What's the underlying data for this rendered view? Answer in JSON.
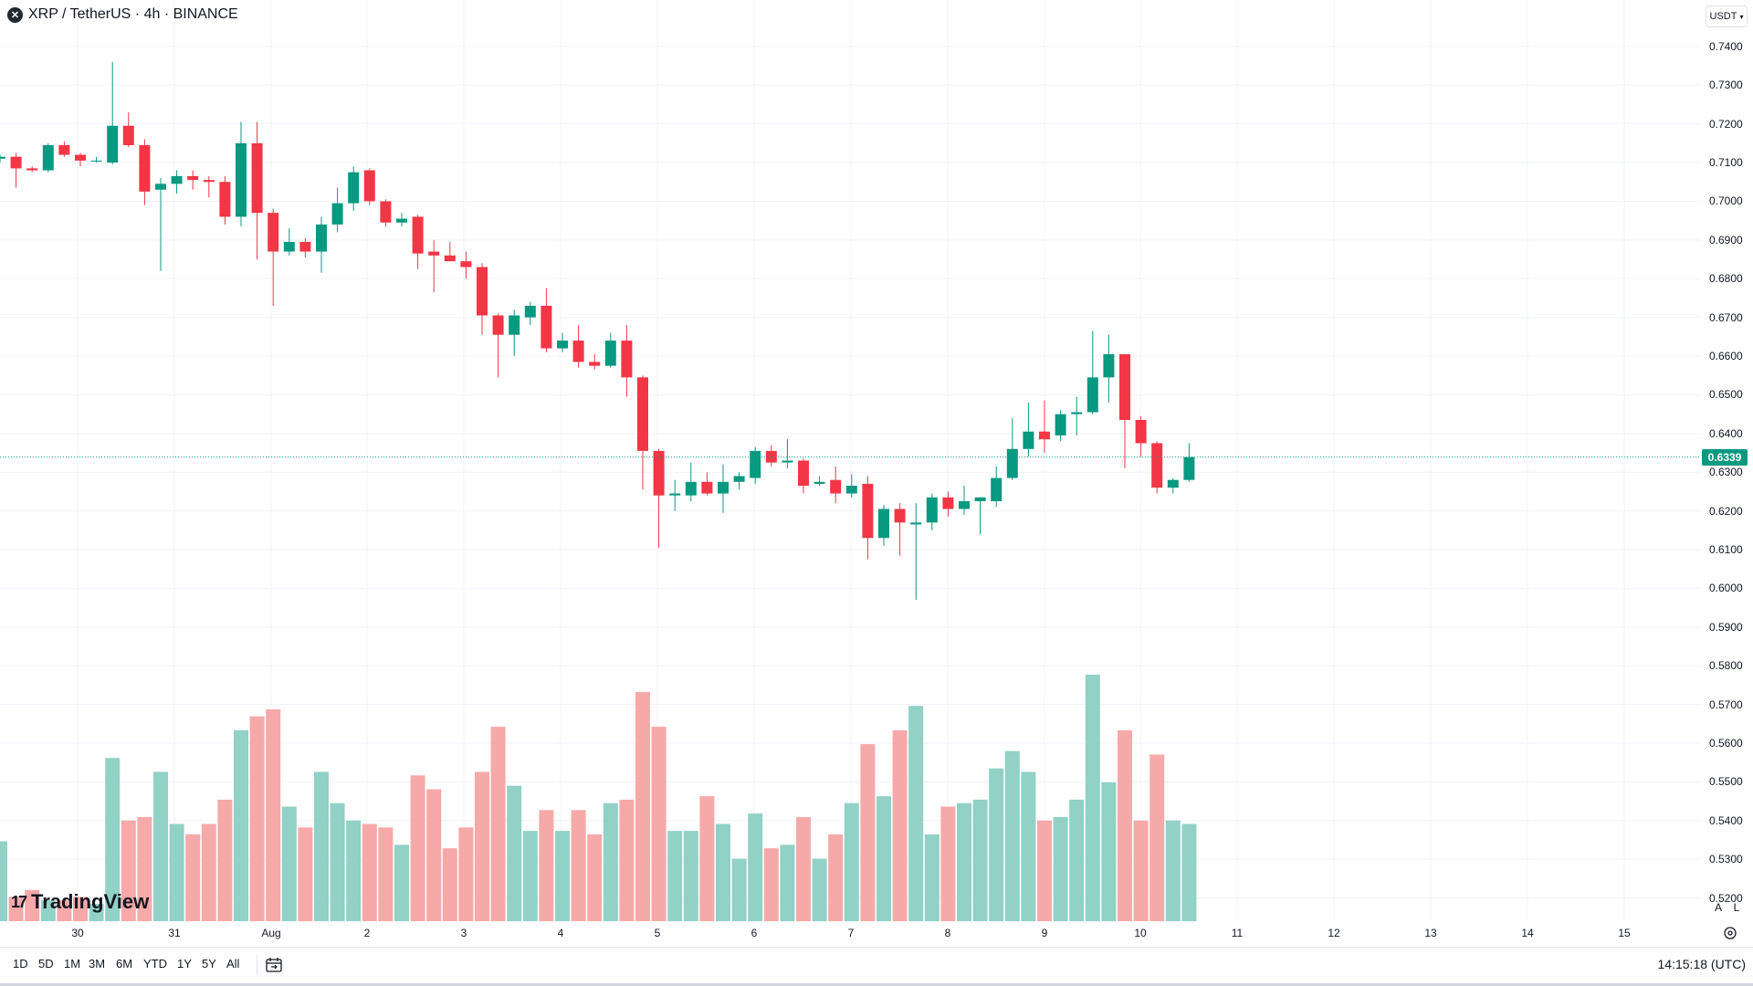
{
  "header": {
    "symbol_logo": "✕",
    "title": "XRP / TetherUS · 4h · BINANCE"
  },
  "branding": {
    "logo_mark": "17",
    "logo_text": "TradingView"
  },
  "price_axis": {
    "currency_button": "USDT",
    "labels": [
      "0.7400",
      "0.7300",
      "0.7200",
      "0.7100",
      "0.7000",
      "0.6900",
      "0.6800",
      "0.6700",
      "0.6600",
      "0.6500",
      "0.6400",
      "0.6300",
      "0.6200",
      "0.6100",
      "0.6000",
      "0.5900",
      "0.5800",
      "0.5700",
      "0.5600",
      "0.5500",
      "0.5400",
      "0.5300",
      "0.5200"
    ],
    "last_price": "0.6339",
    "auto_button": "A",
    "log_button": "L"
  },
  "time_axis": {
    "labels": [
      "30",
      "31",
      "Aug",
      "2",
      "3",
      "4",
      "5",
      "6",
      "7",
      "8",
      "9",
      "10",
      "11",
      "12",
      "13",
      "14",
      "15"
    ]
  },
  "bottom_bar": {
    "ranges": [
      "1D",
      "5D",
      "1M",
      "3M",
      "6M",
      "YTD",
      "1Y",
      "5Y",
      "All"
    ],
    "clock": "14:15:18 (UTC)"
  },
  "colors": {
    "up": "#089981",
    "down": "#f23645",
    "up_volume": "#91d1c6",
    "down_volume": "#f6a9a9",
    "grid": "#f0f3fa",
    "last_price_line": "#089981"
  },
  "chart_data": {
    "type": "candlestick",
    "interval": "4h",
    "y_range": [
      0.514,
      0.752
    ],
    "candles": [
      {
        "open": 0.711,
        "high": 0.712,
        "low": 0.71,
        "close": 0.7115
      },
      {
        "open": 0.7115,
        "high": 0.7125,
        "low": 0.7035,
        "close": 0.7085
      },
      {
        "open": 0.7085,
        "high": 0.709,
        "low": 0.7075,
        "close": 0.708
      },
      {
        "open": 0.708,
        "high": 0.715,
        "low": 0.7075,
        "close": 0.7145
      },
      {
        "open": 0.7145,
        "high": 0.7155,
        "low": 0.7115,
        "close": 0.712
      },
      {
        "open": 0.712,
        "high": 0.7125,
        "low": 0.709,
        "close": 0.7105
      },
      {
        "open": 0.7105,
        "high": 0.7115,
        "low": 0.71,
        "close": 0.7105
      },
      {
        "open": 0.71,
        "high": 0.736,
        "low": 0.7095,
        "close": 0.7195
      },
      {
        "open": 0.7195,
        "high": 0.723,
        "low": 0.714,
        "close": 0.7145
      },
      {
        "open": 0.7145,
        "high": 0.716,
        "low": 0.699,
        "close": 0.7025
      },
      {
        "open": 0.703,
        "high": 0.706,
        "low": 0.682,
        "close": 0.7045
      },
      {
        "open": 0.7045,
        "high": 0.708,
        "low": 0.702,
        "close": 0.7065
      },
      {
        "open": 0.7065,
        "high": 0.708,
        "low": 0.703,
        "close": 0.7055
      },
      {
        "open": 0.7055,
        "high": 0.7065,
        "low": 0.701,
        "close": 0.705
      },
      {
        "open": 0.705,
        "high": 0.7065,
        "low": 0.694,
        "close": 0.696
      },
      {
        "open": 0.696,
        "high": 0.7205,
        "low": 0.6935,
        "close": 0.715
      },
      {
        "open": 0.715,
        "high": 0.7205,
        "low": 0.685,
        "close": 0.697
      },
      {
        "open": 0.697,
        "high": 0.698,
        "low": 0.673,
        "close": 0.687
      },
      {
        "open": 0.687,
        "high": 0.693,
        "low": 0.686,
        "close": 0.6895
      },
      {
        "open": 0.6895,
        "high": 0.6905,
        "low": 0.6855,
        "close": 0.687
      },
      {
        "open": 0.687,
        "high": 0.696,
        "low": 0.6815,
        "close": 0.694
      },
      {
        "open": 0.694,
        "high": 0.7035,
        "low": 0.692,
        "close": 0.6995
      },
      {
        "open": 0.6995,
        "high": 0.709,
        "low": 0.6975,
        "close": 0.7075
      },
      {
        "open": 0.708,
        "high": 0.7085,
        "low": 0.699,
        "close": 0.7
      },
      {
        "open": 0.7,
        "high": 0.7005,
        "low": 0.6935,
        "close": 0.6945
      },
      {
        "open": 0.6945,
        "high": 0.697,
        "low": 0.6935,
        "close": 0.6955
      },
      {
        "open": 0.696,
        "high": 0.6965,
        "low": 0.6825,
        "close": 0.6865
      },
      {
        "open": 0.687,
        "high": 0.69,
        "low": 0.6765,
        "close": 0.686
      },
      {
        "open": 0.686,
        "high": 0.6895,
        "low": 0.685,
        "close": 0.6845
      },
      {
        "open": 0.6845,
        "high": 0.687,
        "low": 0.68,
        "close": 0.683
      },
      {
        "open": 0.683,
        "high": 0.684,
        "low": 0.6655,
        "close": 0.6705
      },
      {
        "open": 0.6705,
        "high": 0.671,
        "low": 0.6545,
        "close": 0.6655
      },
      {
        "open": 0.6655,
        "high": 0.672,
        "low": 0.66,
        "close": 0.6705
      },
      {
        "open": 0.67,
        "high": 0.674,
        "low": 0.668,
        "close": 0.673
      },
      {
        "open": 0.673,
        "high": 0.6775,
        "low": 0.661,
        "close": 0.662
      },
      {
        "open": 0.662,
        "high": 0.666,
        "low": 0.661,
        "close": 0.664
      },
      {
        "open": 0.664,
        "high": 0.668,
        "low": 0.657,
        "close": 0.6585
      },
      {
        "open": 0.6585,
        "high": 0.6605,
        "low": 0.6565,
        "close": 0.6575
      },
      {
        "open": 0.6575,
        "high": 0.666,
        "low": 0.657,
        "close": 0.664
      },
      {
        "open": 0.664,
        "high": 0.668,
        "low": 0.6495,
        "close": 0.6545
      },
      {
        "open": 0.6545,
        "high": 0.655,
        "low": 0.6255,
        "close": 0.6355
      },
      {
        "open": 0.6355,
        "high": 0.636,
        "low": 0.6105,
        "close": 0.624
      },
      {
        "open": 0.624,
        "high": 0.628,
        "low": 0.62,
        "close": 0.6245
      },
      {
        "open": 0.624,
        "high": 0.6325,
        "low": 0.6225,
        "close": 0.6275
      },
      {
        "open": 0.6275,
        "high": 0.63,
        "low": 0.624,
        "close": 0.6245
      },
      {
        "open": 0.6245,
        "high": 0.632,
        "low": 0.6195,
        "close": 0.6275
      },
      {
        "open": 0.6275,
        "high": 0.63,
        "low": 0.6255,
        "close": 0.629
      },
      {
        "open": 0.6285,
        "high": 0.6365,
        "low": 0.627,
        "close": 0.6355
      },
      {
        "open": 0.6355,
        "high": 0.637,
        "low": 0.6315,
        "close": 0.6325
      },
      {
        "open": 0.6325,
        "high": 0.6385,
        "low": 0.631,
        "close": 0.633
      },
      {
        "open": 0.633,
        "high": 0.6335,
        "low": 0.6245,
        "close": 0.6265
      },
      {
        "open": 0.627,
        "high": 0.629,
        "low": 0.6265,
        "close": 0.6275
      },
      {
        "open": 0.628,
        "high": 0.6315,
        "low": 0.622,
        "close": 0.6245
      },
      {
        "open": 0.6245,
        "high": 0.6295,
        "low": 0.6235,
        "close": 0.6265
      },
      {
        "open": 0.627,
        "high": 0.629,
        "low": 0.6075,
        "close": 0.613
      },
      {
        "open": 0.613,
        "high": 0.6215,
        "low": 0.611,
        "close": 0.6205
      },
      {
        "open": 0.6205,
        "high": 0.622,
        "low": 0.6085,
        "close": 0.617
      },
      {
        "open": 0.6165,
        "high": 0.622,
        "low": 0.597,
        "close": 0.617
      },
      {
        "open": 0.617,
        "high": 0.6245,
        "low": 0.615,
        "close": 0.6235
      },
      {
        "open": 0.6235,
        "high": 0.625,
        "low": 0.6185,
        "close": 0.6205
      },
      {
        "open": 0.6205,
        "high": 0.6265,
        "low": 0.619,
        "close": 0.6225
      },
      {
        "open": 0.6225,
        "high": 0.6235,
        "low": 0.614,
        "close": 0.6235
      },
      {
        "open": 0.6225,
        "high": 0.6315,
        "low": 0.621,
        "close": 0.6285
      },
      {
        "open": 0.6285,
        "high": 0.644,
        "low": 0.628,
        "close": 0.636
      },
      {
        "open": 0.636,
        "high": 0.648,
        "low": 0.634,
        "close": 0.6405
      },
      {
        "open": 0.6405,
        "high": 0.6485,
        "low": 0.635,
        "close": 0.6385
      },
      {
        "open": 0.6395,
        "high": 0.646,
        "low": 0.638,
        "close": 0.645
      },
      {
        "open": 0.645,
        "high": 0.6495,
        "low": 0.6395,
        "close": 0.6455
      },
      {
        "open": 0.6455,
        "high": 0.6665,
        "low": 0.645,
        "close": 0.6545
      },
      {
        "open": 0.6545,
        "high": 0.6655,
        "low": 0.648,
        "close": 0.6605
      },
      {
        "open": 0.6605,
        "high": 0.6605,
        "low": 0.631,
        "close": 0.6435
      },
      {
        "open": 0.6435,
        "high": 0.6445,
        "low": 0.634,
        "close": 0.6375
      },
      {
        "open": 0.6375,
        "high": 0.638,
        "low": 0.6245,
        "close": 0.626
      },
      {
        "open": 0.626,
        "high": 0.6285,
        "low": 0.6245,
        "close": 0.628
      },
      {
        "open": 0.628,
        "high": 0.6375,
        "low": 0.6275,
        "close": 0.6339
      }
    ],
    "volume_relative": [
      0.23,
      0.07,
      0.09,
      0.06,
      0.06,
      0.07,
      0.05,
      0.47,
      0.29,
      0.3,
      0.43,
      0.28,
      0.25,
      0.28,
      0.35,
      0.55,
      0.59,
      0.61,
      0.33,
      0.27,
      0.43,
      0.34,
      0.29,
      0.28,
      0.27,
      0.22,
      0.42,
      0.38,
      0.21,
      0.27,
      0.43,
      0.56,
      0.39,
      0.26,
      0.32,
      0.26,
      0.32,
      0.25,
      0.34,
      0.35,
      0.66,
      0.56,
      0.26,
      0.26,
      0.36,
      0.28,
      0.18,
      0.31,
      0.21,
      0.22,
      0.3,
      0.18,
      0.25,
      0.34,
      0.51,
      0.36,
      0.55,
      0.62,
      0.25,
      0.33,
      0.34,
      0.35,
      0.44,
      0.49,
      0.43,
      0.29,
      0.3,
      0.35,
      0.71,
      0.4,
      0.55,
      0.29,
      0.48,
      0.29,
      0.28
    ]
  }
}
